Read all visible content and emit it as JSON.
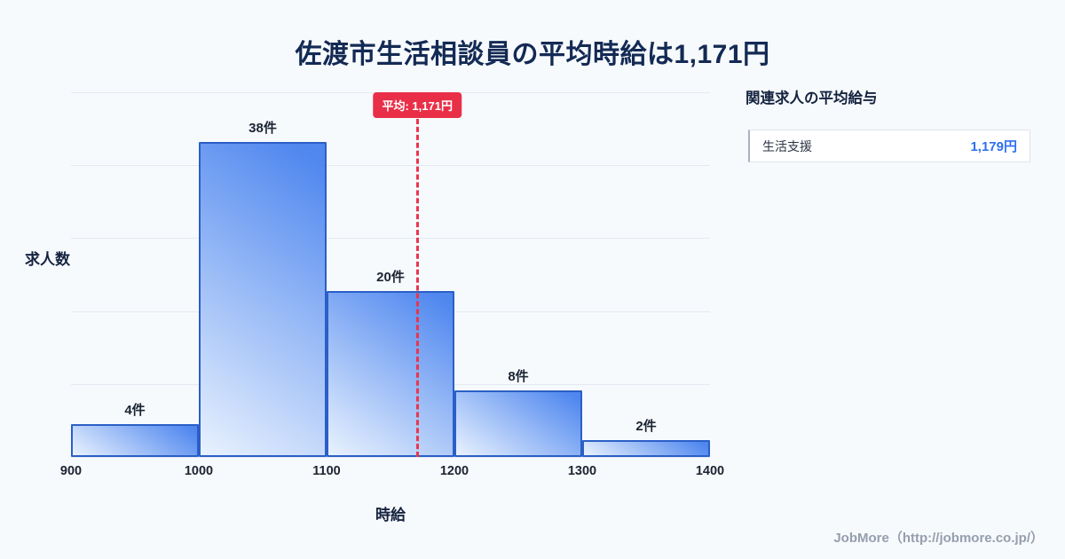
{
  "page": {
    "title": "佐渡市生活相談員の平均時給は1,171円",
    "footer": "JobMore（http://jobmore.co.jp/）"
  },
  "chart_data": {
    "type": "bar",
    "title": "佐渡市生活相談員の平均時給は1,171円",
    "xlabel": "時給",
    "ylabel": "求人数",
    "categories": [
      "900-1000",
      "1000-1100",
      "1100-1200",
      "1200-1300",
      "1300-1400"
    ],
    "values": [
      4,
      38,
      20,
      8,
      2
    ],
    "bar_labels": [
      "4件",
      "38件",
      "20件",
      "8件",
      "2件"
    ],
    "x_ticks": [
      "900",
      "1000",
      "1100",
      "1200",
      "1300",
      "1400"
    ],
    "xrange": [
      900,
      1400
    ],
    "ylim": [
      0,
      44
    ],
    "grid": true,
    "gridline_count": 6,
    "legend": "none",
    "average": {
      "value": 1171,
      "label": "平均: 1,171円",
      "color": "#e8374d"
    },
    "bar_fill_from": "#e9f2fe",
    "bar_fill_to": "#4f87ef",
    "bar_border": "#2b5fc7"
  },
  "side_panel": {
    "title": "関連求人の平均給与",
    "items": [
      {
        "label": "生活支援",
        "value": "1,179円"
      }
    ]
  }
}
